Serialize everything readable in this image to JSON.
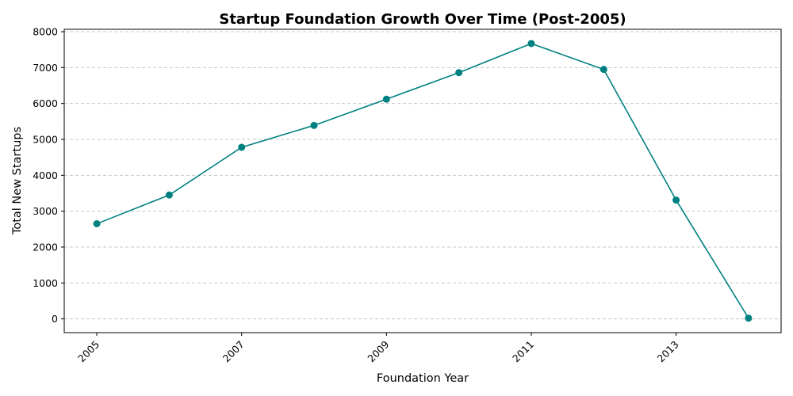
{
  "chart_data": {
    "type": "line",
    "title": "Startup Foundation Growth Over Time (Post-2005)",
    "xlabel": "Foundation Year",
    "ylabel": "Total New Startups",
    "x": [
      2005,
      2006,
      2007,
      2008,
      2009,
      2010,
      2011,
      2012,
      2013,
      2014
    ],
    "series": [
      {
        "values": [
          2650,
          3450,
          4780,
          5390,
          6120,
          6860,
          7670,
          6950,
          3310,
          20
        ]
      }
    ],
    "xticks": [
      "2005",
      "2007",
      "2009",
      "2011",
      "2013"
    ],
    "yticks": [
      "0",
      "1000",
      "2000",
      "3000",
      "4000",
      "5000",
      "6000",
      "7000",
      "8000"
    ],
    "xlim": [
      2004.55,
      2014.45
    ],
    "ylim": [
      -384,
      8067
    ],
    "grid": "y-dashed",
    "line_color": "#008080",
    "legend": "none"
  }
}
